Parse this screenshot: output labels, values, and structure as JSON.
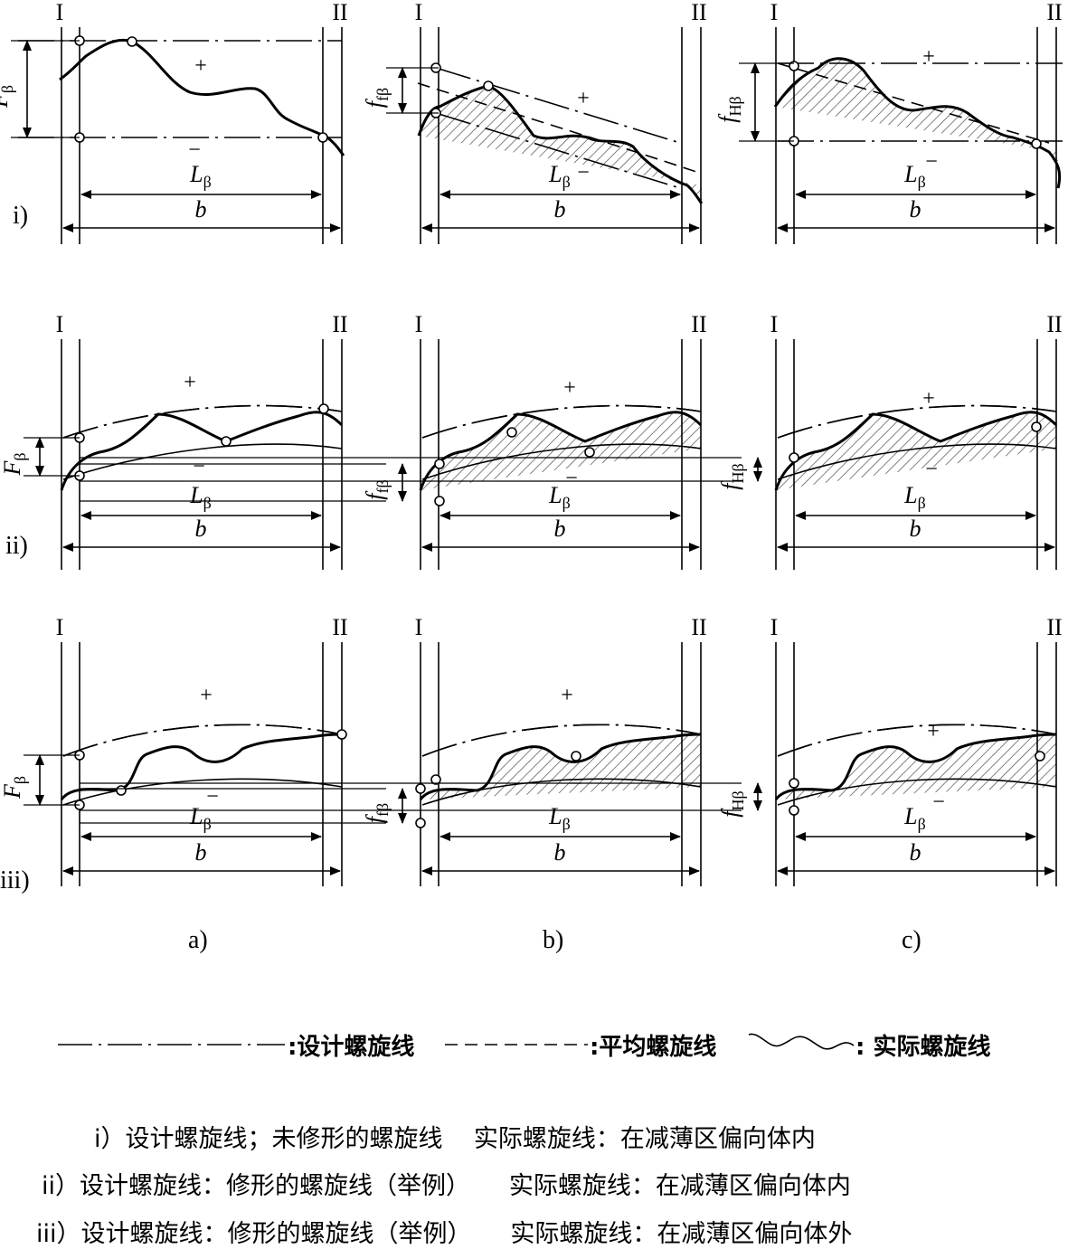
{
  "columns": [
    {
      "label": "a)"
    },
    {
      "label": "b)"
    },
    {
      "label": "c)"
    }
  ],
  "rows": [
    {
      "label": "i)"
    },
    {
      "label": "ii)"
    },
    {
      "label": "iii)"
    }
  ],
  "section_marks": {
    "left": "I",
    "right": "II"
  },
  "signs": {
    "plus": "+",
    "minus": "−"
  },
  "dimensions": {
    "total_deviation": "Fβ",
    "form_deviation": "ffβ",
    "slope_deviation": "fHβ",
    "evaluation_range": "Lβ",
    "face_width": "b"
  },
  "legend": {
    "design_helix": ":设计螺旋线",
    "mean_helix": ":平均螺旋线",
    "actual_helix": ": 实际螺旋线"
  },
  "captions": [
    "i）设计螺旋线；未修形的螺旋线    实际螺旋线：在减薄区偏向体内",
    "ii）设计螺旋线：修形的螺旋线（举例）     实际螺旋线：在减薄区偏向体内",
    "iii）设计螺旋线：修形的螺旋线（举例）     实际螺旋线：在减薄区偏向体外"
  ]
}
